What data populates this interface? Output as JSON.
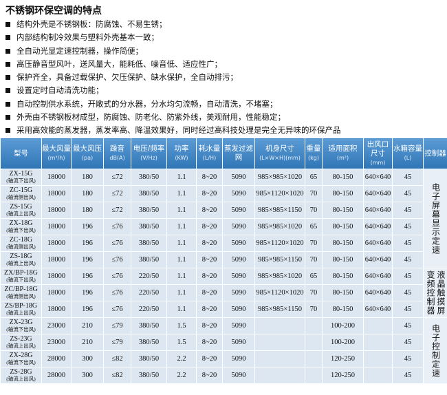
{
  "header": {
    "title": "不锈钢环保空调的特点"
  },
  "features": [
    "结构外壳是不锈钢板：防腐蚀、不易生锈；",
    "内部结构制冷效果与塑料外壳基本一致；",
    "全自动光显定速控制器，操作简便；",
    "高压静音型风叶，送风量大，能耗低、噪音低、适应性广；",
    "保护齐全，具备过载保护、欠压保护、缺水保护，全自动排污；",
    "设置定时自动清洗功能；",
    "自动控制供水系统，开敞式的分水器，分水均匀流畅，自动清洗，不堵塞；",
    "外壳由不锈钢板材成型，防腐蚀、防老化、防紫外线，美观耐用，性能稳定；",
    "采用高效能的蒸发器，蒸发率高、降温效果好，同时经过高科技处理是完全无异味的环保产品"
  ],
  "table": {
    "header": [
      {
        "name": "型号"
      },
      {
        "name": "最大风量",
        "unit": "(m³/h)"
      },
      {
        "name": "最大风压",
        "unit": "(pa)"
      },
      {
        "name": "躁音",
        "unit": "dB(A)"
      },
      {
        "name": "电压/频率",
        "unit": "(V/Hz)"
      },
      {
        "name": "功率",
        "unit": "(KW)"
      },
      {
        "name": "耗水量",
        "unit": "(L/H)"
      },
      {
        "name": "蒸发过滤网"
      },
      {
        "name": "机身尺寸",
        "unit": "(L×W×H)(mm)"
      },
      {
        "name": "重量",
        "unit": "(kg)"
      },
      {
        "name": "适用面积",
        "unit": "(m²)"
      },
      {
        "name": "出风口尺寸",
        "unit": "(mm)"
      },
      {
        "name": "水箱容量",
        "unit": "(L)"
      },
      {
        "name": "控制器"
      }
    ],
    "rows": [
      {
        "model": "ZX-15G",
        "note": "(轴流下出风)",
        "cells": [
          "18000",
          "180",
          "≤72",
          "380/50",
          "1.1",
          "8~20",
          "5090",
          "985×985×1020",
          "65",
          "80-150",
          "640×640",
          "45"
        ]
      },
      {
        "model": "ZC-15G",
        "note": "(轴流侧出风)",
        "cells": [
          "18000",
          "180",
          "≤72",
          "380/50",
          "1.1",
          "8~20",
          "5090",
          "985×1120×1020",
          "70",
          "80-150",
          "640×640",
          "45"
        ]
      },
      {
        "model": "ZS-15G",
        "note": "(轴流上出风)",
        "cells": [
          "18000",
          "180",
          "≤72",
          "380/50",
          "1.1",
          "8~20",
          "5090",
          "985×985×1150",
          "70",
          "80-150",
          "640×640",
          "45"
        ]
      },
      {
        "model": "ZX-18G",
        "note": "(轴流下出风)",
        "cells": [
          "18000",
          "196",
          "≤76",
          "380/50",
          "1.1",
          "8~20",
          "5090",
          "985×985×1020",
          "65",
          "80-150",
          "640×640",
          "45"
        ]
      },
      {
        "model": "ZC-18G",
        "note": "(轴流侧出风)",
        "cells": [
          "18000",
          "196",
          "≤76",
          "380/50",
          "1.1",
          "8~20",
          "5090",
          "985×1120×1020",
          "70",
          "80-150",
          "640×640",
          "45"
        ]
      },
      {
        "model": "ZS-18G",
        "note": "(轴流上出风)",
        "cells": [
          "18000",
          "196",
          "≤76",
          "380/50",
          "1.1",
          "8~20",
          "5090",
          "985×985×1150",
          "70",
          "80-150",
          "640×640",
          "45"
        ]
      },
      {
        "model": "ZX/BP-18G",
        "note": "(轴流下出风)",
        "cells": [
          "18000",
          "196",
          "≤76",
          "220/50",
          "1.1",
          "8~20",
          "5090",
          "985×985×1020",
          "65",
          "80-150",
          "640×640",
          "45"
        ]
      },
      {
        "model": "ZC/BP-18G",
        "note": "(轴流侧出风)",
        "cells": [
          "18000",
          "196",
          "≤76",
          "220/50",
          "1.1",
          "8~20",
          "5090",
          "985×1120×1020",
          "70",
          "80-150",
          "640×640",
          "45"
        ]
      },
      {
        "model": "ZS/BP-18G",
        "note": "(轴流上出风)",
        "cells": [
          "18000",
          "196",
          "≤76",
          "220/50",
          "1.1",
          "8~20",
          "5090",
          "985×985×1150",
          "70",
          "80-150",
          "640×640",
          "45"
        ]
      },
      {
        "model": "ZX-23G",
        "note": "(轴流下出风)",
        "cells": [
          "23000",
          "210",
          "≤79",
          "380/50",
          "1.5",
          "8~20",
          "5090",
          null,
          null,
          "100-200",
          null,
          "45"
        ]
      },
      {
        "model": "ZS-23G",
        "note": "(轴流上出风)",
        "cells": [
          "23000",
          "210",
          "≤79",
          "380/50",
          "1.5",
          "8~20",
          "5090",
          null,
          null,
          "100-200",
          null,
          "45"
        ]
      },
      {
        "model": "ZX-28G",
        "note": "(轴流下出风)",
        "cells": [
          "28000",
          "300",
          "≤82",
          "380/50",
          "2.2",
          "8~20",
          "5090",
          null,
          null,
          "120-250",
          null,
          "45"
        ]
      },
      {
        "model": "ZS-28G",
        "note": "(轴流上出风)",
        "cells": [
          "28000",
          "300",
          "≤82",
          "380/50",
          "2.2",
          "8~20",
          "5090",
          null,
          null,
          "120-250",
          null,
          "45"
        ]
      }
    ],
    "controllers": [
      [
        "电子屏幕显示定速"
      ],
      [
        "液晶触摸屏",
        "变频控制器"
      ],
      [
        "电子控制定速"
      ]
    ]
  }
}
